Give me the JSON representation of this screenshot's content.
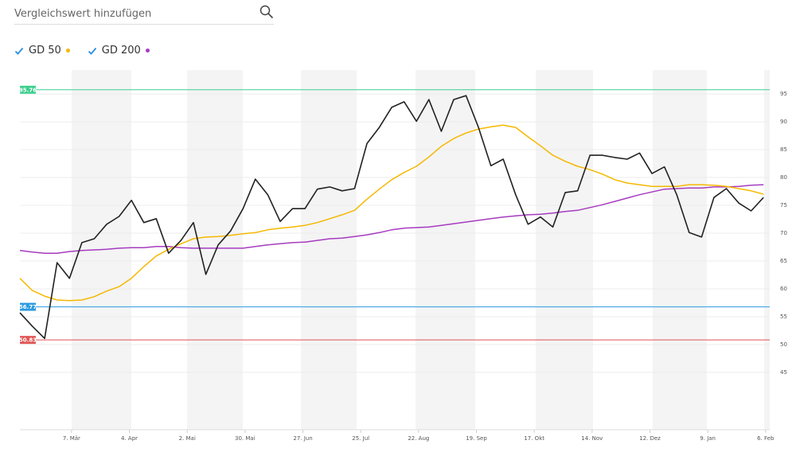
{
  "search": {
    "placeholder": "Vergleichswert hinzufügen"
  },
  "chart_data": {
    "type": "line",
    "x": [
      0,
      6,
      12,
      18,
      24,
      30,
      36,
      42,
      48,
      54,
      60,
      66,
      72,
      78,
      84,
      90,
      96,
      102,
      108,
      114,
      120,
      126,
      132,
      138,
      144,
      150,
      156,
      162,
      168,
      174,
      180,
      186,
      192,
      198,
      204,
      210,
      216,
      222,
      228,
      234,
      240,
      246,
      252,
      258,
      264,
      270,
      276,
      282,
      288,
      294,
      300,
      306,
      312,
      318,
      324,
      330,
      336,
      342,
      348,
      354,
      360
    ],
    "xlim": [
      0,
      363
    ],
    "xticks": [
      {
        "value": 25,
        "label": "7. Mär"
      },
      {
        "value": 53,
        "label": "4. Apr"
      },
      {
        "value": 81,
        "label": "2. Mai"
      },
      {
        "value": 109,
        "label": "30. Mai"
      },
      {
        "value": 137,
        "label": "27. Jun"
      },
      {
        "value": 165,
        "label": "25. Jul"
      },
      {
        "value": 193,
        "label": "22. Aug"
      },
      {
        "value": 221,
        "label": "19. Sep"
      },
      {
        "value": 249,
        "label": "17. Okt"
      },
      {
        "value": 277,
        "label": "14. Nov"
      },
      {
        "value": 305,
        "label": "12. Dez"
      },
      {
        "value": 333,
        "label": "9. Jan"
      },
      {
        "value": 361,
        "label": "6. Feb"
      }
    ],
    "ylim": [
      34.7,
      99.3
    ],
    "yticks": [
      45,
      50,
      55,
      60,
      65,
      70,
      75,
      80,
      85,
      90,
      95
    ],
    "grid": true,
    "series": [
      {
        "color": "#222222",
        "values": [
          55.7,
          53.3,
          51.1,
          64.7,
          61.9,
          68.3,
          69.0,
          71.6,
          73.0,
          75.9,
          71.9,
          72.6,
          66.4,
          68.7,
          71.9,
          62.6,
          67.9,
          70.4,
          74.4,
          79.7,
          76.9,
          72.1,
          74.4,
          74.4,
          77.9,
          78.3,
          77.6,
          78.0,
          86.1,
          89.0,
          92.6,
          93.6,
          90.1,
          94.0,
          88.3,
          94.0,
          94.7,
          89.0,
          82.1,
          83.3,
          76.9,
          71.6,
          72.9,
          71.1,
          77.3,
          77.6,
          84.0,
          84.0,
          83.6,
          83.3,
          84.4,
          80.7,
          81.9,
          76.9,
          70.1,
          69.3,
          76.4,
          78.0,
          75.4,
          74.0,
          76.4
        ]
      },
      {
        "name": "GD 50",
        "color": "#f5b800",
        "values": [
          61.9,
          59.7,
          58.7,
          58.0,
          57.9,
          58.0,
          58.6,
          59.6,
          60.4,
          61.9,
          64.0,
          65.9,
          67.1,
          68.1,
          69.0,
          69.3,
          69.4,
          69.6,
          69.9,
          70.1,
          70.6,
          70.9,
          71.1,
          71.4,
          71.9,
          72.6,
          73.3,
          74.1,
          76.1,
          77.9,
          79.6,
          80.9,
          82.0,
          83.7,
          85.6,
          87.0,
          88.0,
          88.7,
          89.1,
          89.4,
          89.0,
          87.3,
          85.7,
          84.0,
          82.9,
          82.0,
          81.4,
          80.6,
          79.6,
          79.0,
          78.7,
          78.4,
          78.4,
          78.4,
          78.7,
          78.7,
          78.6,
          78.4,
          78.0,
          77.6,
          77.0
        ]
      },
      {
        "name": "GD 200",
        "color": "#a63bbf",
        "values": [
          66.9,
          66.6,
          66.4,
          66.4,
          66.7,
          66.9,
          67.0,
          67.1,
          67.3,
          67.4,
          67.4,
          67.6,
          67.6,
          67.4,
          67.3,
          67.3,
          67.3,
          67.3,
          67.3,
          67.6,
          67.9,
          68.1,
          68.3,
          68.4,
          68.7,
          69.0,
          69.1,
          69.4,
          69.7,
          70.1,
          70.6,
          70.9,
          71.0,
          71.1,
          71.4,
          71.7,
          72.0,
          72.3,
          72.6,
          72.9,
          73.1,
          73.3,
          73.4,
          73.6,
          73.9,
          74.1,
          74.6,
          75.1,
          75.7,
          76.3,
          76.9,
          77.4,
          77.9,
          78.0,
          78.1,
          78.1,
          78.3,
          78.3,
          78.4,
          78.6,
          78.7
        ]
      }
    ],
    "levels": [
      {
        "value": 95.76,
        "color": "#3ccf8e"
      },
      {
        "value": 56.77,
        "color": "#2b9be0"
      },
      {
        "value": 50.83,
        "color": "#e05555"
      }
    ]
  }
}
